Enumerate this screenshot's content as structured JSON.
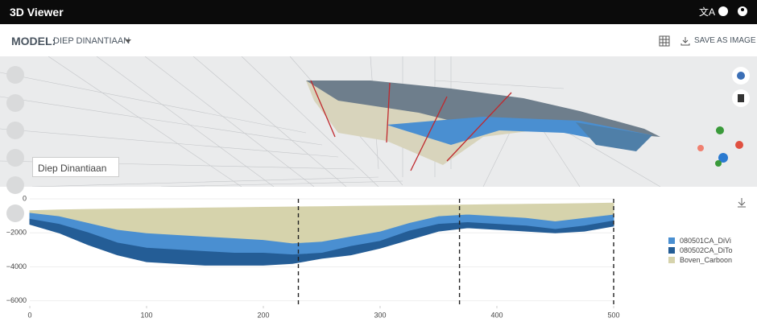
{
  "header": {
    "title": "3D Viewer"
  },
  "toolbar": {
    "model_label": "MODEL:",
    "model_name": "DIEP DINANTIAAN",
    "save": "SAVE AS IMAGE"
  },
  "tooltip": {
    "label": "Diep Dinantiaan"
  },
  "chart_data": {
    "type": "area",
    "x": [
      0,
      25,
      50,
      75,
      100,
      125,
      150,
      175,
      200,
      225,
      250,
      275,
      300,
      325,
      350,
      375,
      400,
      425,
      450,
      475,
      500
    ],
    "series": [
      {
        "name": "080501CA_DiVi",
        "color": "#4a8fd1",
        "high": [
          -800,
          -1000,
          -1400,
          -1800,
          -2000,
          -2100,
          -2200,
          -2300,
          -2400,
          -2600,
          -2500,
          -2200,
          -1900,
          -1400,
          -1000,
          -900,
          -1000,
          -1100,
          -1300,
          -1100,
          -900
        ],
        "low": [
          -1200,
          -1500,
          -2000,
          -2600,
          -2900,
          -3000,
          -3100,
          -3200,
          -3200,
          -3300,
          -3200,
          -2800,
          -2500,
          -1900,
          -1500,
          -1400,
          -1500,
          -1600,
          -1800,
          -1600,
          -1300
        ]
      },
      {
        "name": "080502CA_DiTo",
        "color": "#245d96",
        "high": [
          -1200,
          -1500,
          -2000,
          -2600,
          -2900,
          -3000,
          -3100,
          -3200,
          -3200,
          -3300,
          -3200,
          -2800,
          -2500,
          -1900,
          -1500,
          -1400,
          -1500,
          -1600,
          -1800,
          -1600,
          -1300
        ],
        "low": [
          -1500,
          -2000,
          -2700,
          -3300,
          -3700,
          -3800,
          -3900,
          -3900,
          -3900,
          -3800,
          -3500,
          -3300,
          -2900,
          -2400,
          -1900,
          -1700,
          -1800,
          -1900,
          -2000,
          -1900,
          -1600
        ]
      },
      {
        "name": "Boven_Carboon",
        "color": "#d6d3ac",
        "high": [
          -700,
          -650,
          -620,
          -600,
          -580,
          -560,
          -540,
          -520,
          -500,
          -480,
          -460,
          -440,
          -420,
          -400,
          -380,
          -360,
          -340,
          -320,
          -300,
          -280,
          -250
        ],
        "low": [
          -800,
          -1000,
          -1400,
          -1800,
          -2000,
          -2100,
          -2200,
          -2300,
          -2400,
          -2600,
          -2500,
          -2200,
          -1900,
          -1400,
          -1000,
          -900,
          -1000,
          -1100,
          -1300,
          -1100,
          -900
        ]
      }
    ],
    "vlines": [
      230,
      368,
      500
    ],
    "xlim": [
      0,
      500
    ],
    "xticks": [
      0,
      100,
      200,
      300,
      400,
      500
    ],
    "ylim": [
      -6300,
      0
    ],
    "yticks": [
      0,
      {
        "value": -2000,
        "label": "−2000"
      },
      {
        "value": -4000,
        "label": "−4000"
      },
      {
        "value": -6000,
        "label": "−6000"
      }
    ],
    "grid": true
  }
}
